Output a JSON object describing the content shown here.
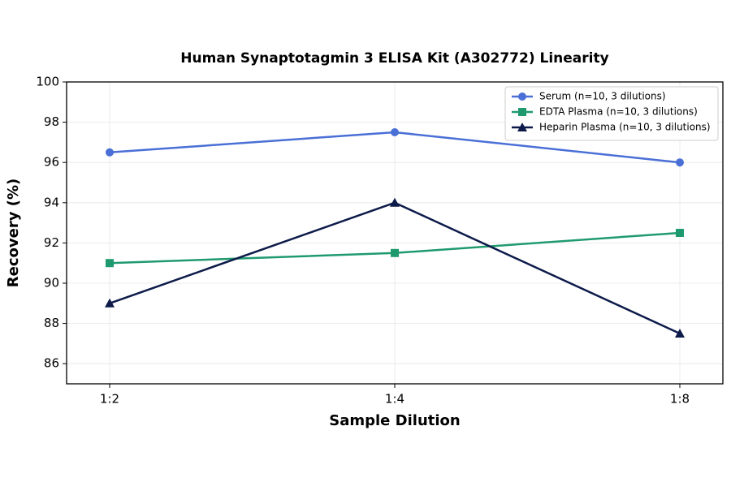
{
  "chart_data": {
    "type": "line",
    "title": "Human Synaptotagmin 3 ELISA Kit (A302772) Linearity",
    "x_label": "Sample Dilution",
    "y_label": "Recovery (%)",
    "categories": [
      "1:2",
      "1:4",
      "1:8"
    ],
    "series": [
      {
        "name": "Serum (n=10, 3 dilutions)",
        "color": "#4a6fd6",
        "marker": "circle",
        "values": [
          96.5,
          97.5,
          96.0
        ]
      },
      {
        "name": "EDTA Plasma (n=10, 3 dilutions)",
        "color": "#1f9a6e",
        "marker": "square",
        "values": [
          91.0,
          91.5,
          92.5
        ]
      },
      {
        "name": "Heparin Plasma (n=10, 3 dilutions)",
        "color": "#0d1b4a",
        "marker": "triangle",
        "values": [
          89.0,
          94.0,
          87.5
        ]
      }
    ],
    "ylim": [
      85,
      100
    ],
    "yticks": [
      86,
      88,
      90,
      92,
      94,
      96,
      98,
      100
    ],
    "grid": true,
    "legend": "upper right"
  }
}
